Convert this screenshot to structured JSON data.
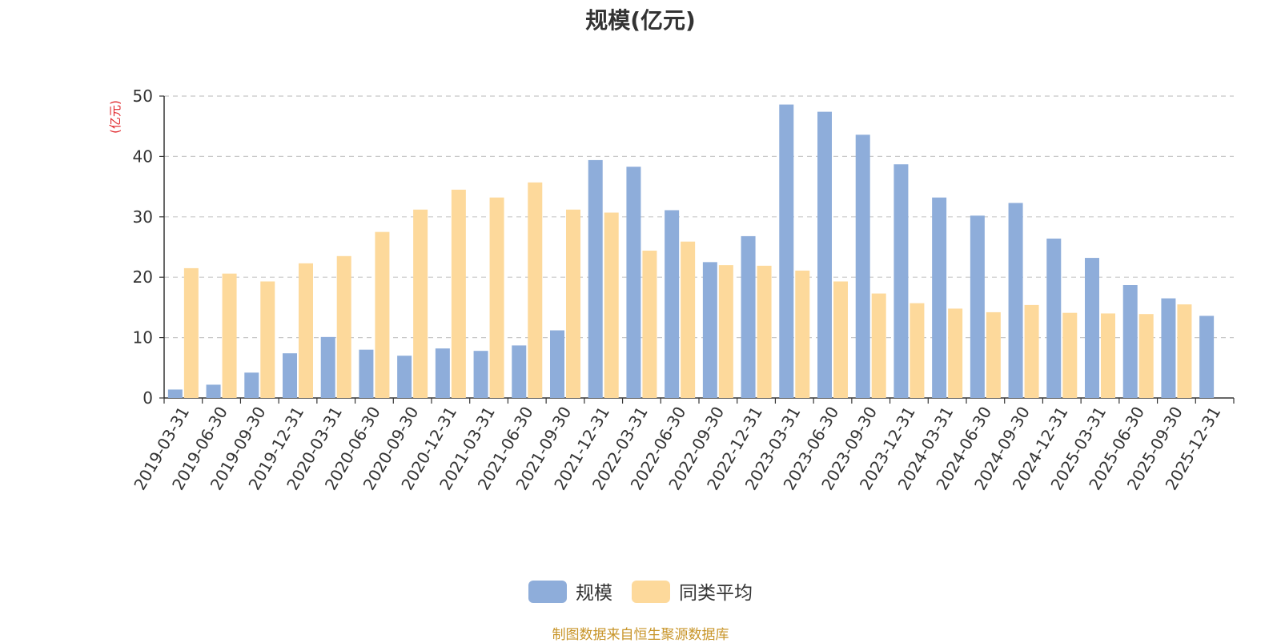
{
  "chart_data": {
    "type": "bar",
    "title": "规模(亿元)",
    "ylabel": "(亿元)",
    "ylim": [
      0,
      50
    ],
    "yticks": [
      0,
      10,
      20,
      30,
      40,
      50
    ],
    "grid": true,
    "legend_position": "bottom-center",
    "categories": [
      "2019-03-31",
      "2019-06-30",
      "2019-09-30",
      "2019-12-31",
      "2020-03-31",
      "2020-06-30",
      "2020-09-30",
      "2020-12-31",
      "2021-03-31",
      "2021-06-30",
      "2021-09-30",
      "2021-12-31",
      "2022-03-31",
      "2022-06-30",
      "2022-09-30",
      "2022-12-31",
      "2023-03-31",
      "2023-06-30",
      "2023-09-30",
      "2023-12-31",
      "2024-03-31",
      "2024-06-30",
      "2024-09-30",
      "2024-12-31",
      "2025-03-31",
      "2025-06-30",
      "2025-09-30",
      "2025-12-31"
    ],
    "series": [
      {
        "name": "规模",
        "color": "#8eadda",
        "values": [
          1.4,
          2.2,
          4.2,
          7.4,
          10.1,
          8.0,
          7.0,
          8.2,
          7.8,
          8.7,
          11.2,
          39.4,
          38.3,
          31.1,
          22.5,
          26.8,
          48.6,
          47.4,
          43.6,
          38.7,
          33.2,
          30.2,
          32.3,
          26.4,
          23.2,
          18.7,
          16.5,
          13.6
        ]
      },
      {
        "name": "同类平均",
        "color": "#fdd99b",
        "values": [
          21.5,
          20.6,
          19.3,
          22.3,
          23.5,
          27.5,
          31.2,
          34.5,
          33.2,
          35.7,
          31.2,
          30.7,
          24.4,
          25.9,
          22.0,
          21.9,
          21.1,
          19.3,
          17.3,
          15.7,
          14.8,
          14.2,
          15.4,
          14.1,
          14.0,
          13.9,
          15.5,
          null
        ]
      }
    ]
  },
  "footer": "制图数据来自恒生聚源数据库"
}
